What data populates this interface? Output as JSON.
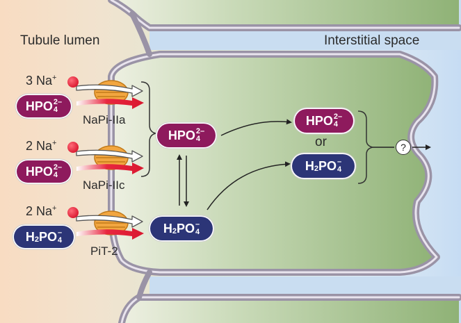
{
  "regions": {
    "lumen": "Tubule lumen",
    "interstitial": "Interstitial space"
  },
  "transporters": [
    {
      "label": "NaPi-IIa",
      "sodium_count": "3 Na",
      "substrate": "HPO"
    },
    {
      "label": "NaPi-IIc",
      "sodium_count": "2 Na",
      "substrate": "HPO"
    },
    {
      "label": "PiT-2",
      "sodium_count": "2 Na",
      "substrate": "H"
    }
  ],
  "species": {
    "hpo": {
      "base": "HPO",
      "sup": "2–",
      "sub": "4"
    },
    "h2po": {
      "h": "H",
      "h_sub": "2",
      "base": "PO",
      "sup": "–",
      "sub": "4"
    }
  },
  "sodium_charge": "+",
  "or_text": "or",
  "unknown_mark": "?",
  "colors": {
    "hpo": "#8e1a5d",
    "h2po": "#2c3577",
    "sodium": "#e8263f",
    "transporter": "#f2a640",
    "membrane": "#9a93a6",
    "lumen_bg": "#f8dcc2",
    "cell_bg": "#8fb276",
    "interstitial_bg": "#c6dcf3"
  }
}
